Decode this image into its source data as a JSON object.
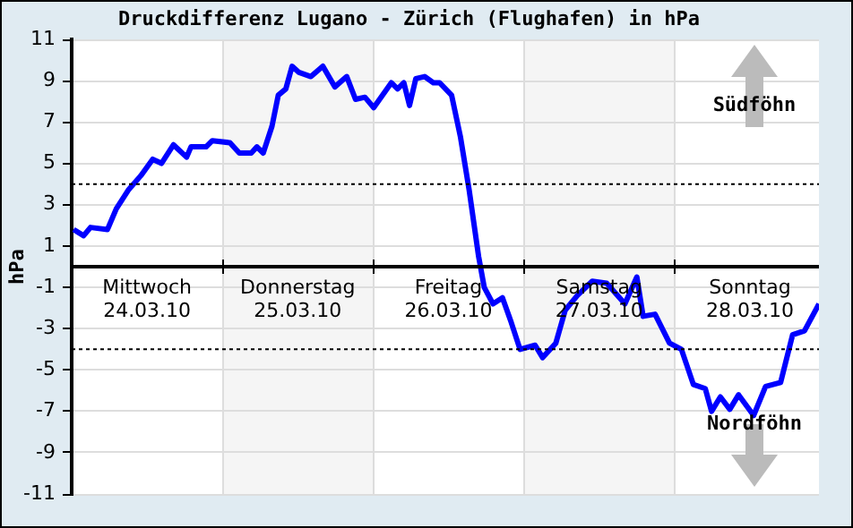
{
  "chart_data": {
    "type": "line",
    "title": "Druckdifferenz Lugano - Zürich (Flughafen) in hPa",
    "ylabel": "hPa",
    "annotations": [
      "Südföhn",
      "Nordföhn"
    ],
    "x": [
      "--03-24T00:18",
      "--03-24T01:54",
      "--03-24T03:00",
      "--03-24T05:42",
      "--03-24T07:06",
      "--03-24T09:00",
      "--03-24T11:00",
      "--03-24T12:54",
      "--03-24T14:18",
      "--03-24T16:12",
      "--03-24T18:18",
      "--03-24T19:00",
      "--03-24T21:24",
      "--03-24T22:24",
      "--03-25T01:12",
      "--03-25T02:42",
      "--03-25T04:36",
      "--03-25T05:30",
      "--03-25T06:30",
      "--03-25T07:54",
      "--03-25T08:54",
      "--03-25T10:06",
      "--03-25T11:06",
      "--03-25T12:12",
      "--03-25T14:06",
      "--03-25T16:00",
      "--03-25T17:54",
      "--03-25T19:48",
      "--03-25T21:12",
      "--03-25T22:42",
      "--03-26T00:06",
      "--03-26T02:54",
      "--03-26T03:54",
      "--03-26T04:54",
      "--03-26T05:48",
      "--03-26T06:48",
      "--03-26T08:12",
      "--03-26T09:36",
      "--03-26T10:36",
      "--03-26T12:30",
      "--03-26T13:54",
      "--03-26T15:18",
      "--03-26T16:48",
      "--03-26T17:42",
      "--03-26T19:06",
      "--03-26T20:36",
      "--03-26T22:00",
      "--03-26T23:24",
      "--03-27T01:48",
      "--03-27T03:00",
      "--03-27T05:06",
      "--03-27T06:36",
      "--03-27T08:30",
      "--03-27T10:54",
      "--03-27T13:12",
      "--03-27T16:06",
      "--03-27T18:00",
      "--03-27T19:00",
      "--03-27T20:54",
      "--03-27T23:12",
      "--03-28T01:06",
      "--03-28T03:00",
      "--03-28T04:54",
      "--03-28T05:54",
      "--03-28T07:18",
      "--03-28T08:48",
      "--03-28T10:12",
      "--03-28T12:36",
      "--03-28T14:30",
      "--03-28T16:54",
      "--03-28T18:48",
      "--03-28T20:42",
      "--03-28T23:00"
    ],
    "series": [
      {
        "color": "#0000ff",
        "values": [
          1.8,
          1.5,
          1.9,
          1.8,
          2.8,
          3.7,
          4.4,
          5.2,
          5,
          5.9,
          5.3,
          5.8,
          5.8,
          6.1,
          6,
          5.5,
          5.5,
          5.8,
          5.5,
          6.8,
          8.3,
          8.6,
          9.7,
          9.4,
          9.2,
          9.7,
          8.7,
          9.2,
          8.1,
          8.2,
          7.7,
          8.9,
          8.6,
          8.9,
          7.8,
          9.1,
          9.2,
          8.9,
          8.9,
          8.3,
          6.3,
          3.7,
          0.5,
          -1,
          -1.8,
          -1.5,
          -2.7,
          -4,
          -3.8,
          -4.4,
          -3.7,
          -2.1,
          -1.4,
          -0.7,
          -0.8,
          -1.8,
          -0.5,
          -2.4,
          -2.3,
          -3.7,
          -4,
          -5.7,
          -5.9,
          -7,
          -6.3,
          -6.9,
          -6.2,
          -7.2,
          -5.8,
          -5.6,
          -3.3,
          -3.1,
          -1.8
        ]
      }
    ],
    "xlim": [
      "--03-24T00:00",
      "--03-28T23:00"
    ],
    "xticks": [
      {
        "value": "--03-24T00:00",
        "label": null
      },
      {
        "value": "--03-24T12:00",
        "label": "Mittwoch\n24.03.10"
      },
      {
        "value": "--03-25T00:00",
        "label": null
      },
      {
        "value": "--03-25T12:00",
        "label": "Donnerstag\n25.03.10"
      },
      {
        "value": "--03-26T00:00",
        "label": null
      },
      {
        "value": "--03-26T12:00",
        "label": "Freitag\n26.03.10"
      },
      {
        "value": "--03-27T00:00",
        "label": null
      },
      {
        "value": "--03-27T12:00",
        "label": "Samstag\n27.03.10"
      },
      {
        "value": "--03-28T00:00",
        "label": null
      },
      {
        "value": "--03-28T12:00",
        "label": "Sonntag\n28.03.10"
      }
    ],
    "ylim": [
      -11,
      11
    ],
    "yticks": [
      -11,
      -9,
      -7,
      -5,
      -3,
      -1,
      1,
      3,
      5,
      7,
      9,
      11
    ],
    "grid": true,
    "legend": false,
    "marker": "none",
    "line_style": "solid",
    "ref_lines": [
      {
        "axis": "y",
        "value": 4,
        "color": "#000000",
        "line_style": "dotted"
      },
      {
        "axis": "y",
        "value": -4,
        "color": "#000000",
        "line_style": "dotted"
      }
    ],
    "bands": [
      {
        "axis": "x",
        "from": "--03-25T00:00",
        "to": "--03-26T00:00",
        "color": "#f5f5f5"
      },
      {
        "axis": "x",
        "from": "--03-27T00:00",
        "to": "--03-28T00:00",
        "color": "#f5f5f5"
      }
    ]
  }
}
